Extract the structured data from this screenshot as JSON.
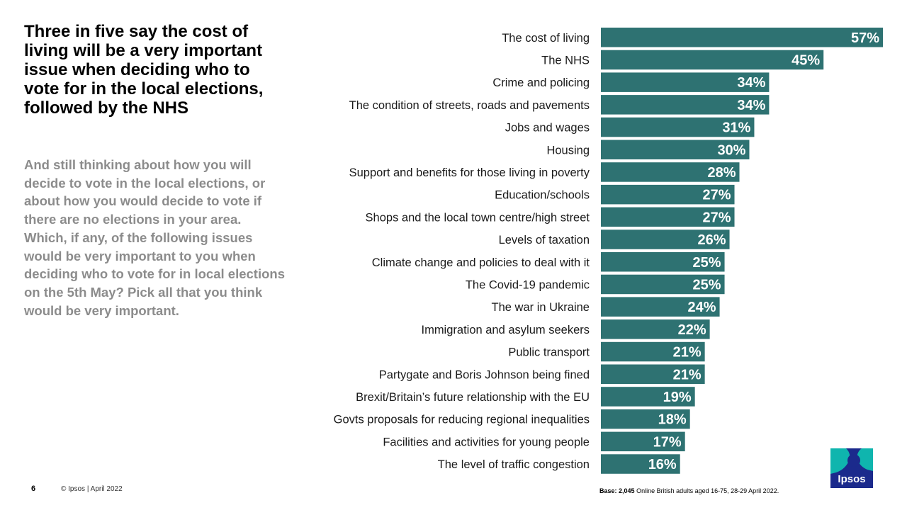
{
  "headline": "Three in five say the cost of living will be a very important issue when deciding who to vote for in the local elections, followed by the NHS",
  "question": "And still thinking about how you will  decide to vote in the local elections, or about how you would decide to vote if there are no elections in your area. Which, if any, of the following  issues would be very important to you when deciding who to vote for in local elections on the 5th May? Pick all that you think would be very important.",
  "footer": {
    "page_number": "6",
    "copyright": "© Ipsos | April 2022",
    "base_label": "Base:",
    "base_value": "2,045",
    "base_text": "Online British adults aged 16-75, 28-29 April 2022.",
    "logo_text": "Ipsos"
  },
  "colors": {
    "bar": "#2e7272",
    "logo_bg": "#1b2a8c",
    "logo_accent": "#0fb5ae"
  },
  "chart_data": {
    "type": "bar",
    "orientation": "horizontal",
    "categories": [
      "The cost of living",
      "The NHS",
      "Crime and policing",
      "The condition of streets, roads and pavements",
      "Jobs and wages",
      "Housing",
      "Support and benefits for those living in poverty",
      "Education/schools",
      "Shops and the local town centre/high street",
      "Levels of taxation",
      "Climate change and policies to deal with it",
      "The Covid-19 pandemic",
      "The war in Ukraine",
      "Immigration and asylum seekers",
      "Public transport",
      "Partygate and Boris Johnson being fined",
      "Brexit/Britain’s future relationship with the EU",
      "Govts proposals for reducing regional inequalities",
      "Facilities and activities for young people",
      "The level of traffic congestion"
    ],
    "values": [
      57,
      45,
      34,
      34,
      31,
      30,
      28,
      27,
      27,
      26,
      25,
      25,
      24,
      22,
      21,
      21,
      19,
      18,
      17,
      16
    ],
    "labels": [
      "57%",
      "45%",
      "34%",
      "34%",
      "31%",
      "30%",
      "28%",
      "27%",
      "27%",
      "26%",
      "25%",
      "25%",
      "24%",
      "22%",
      "21%",
      "21%",
      "19%",
      "18%",
      "17%",
      "16%"
    ],
    "unit": "%",
    "xlim": [
      0,
      57
    ],
    "grid": false,
    "legend": "none"
  }
}
